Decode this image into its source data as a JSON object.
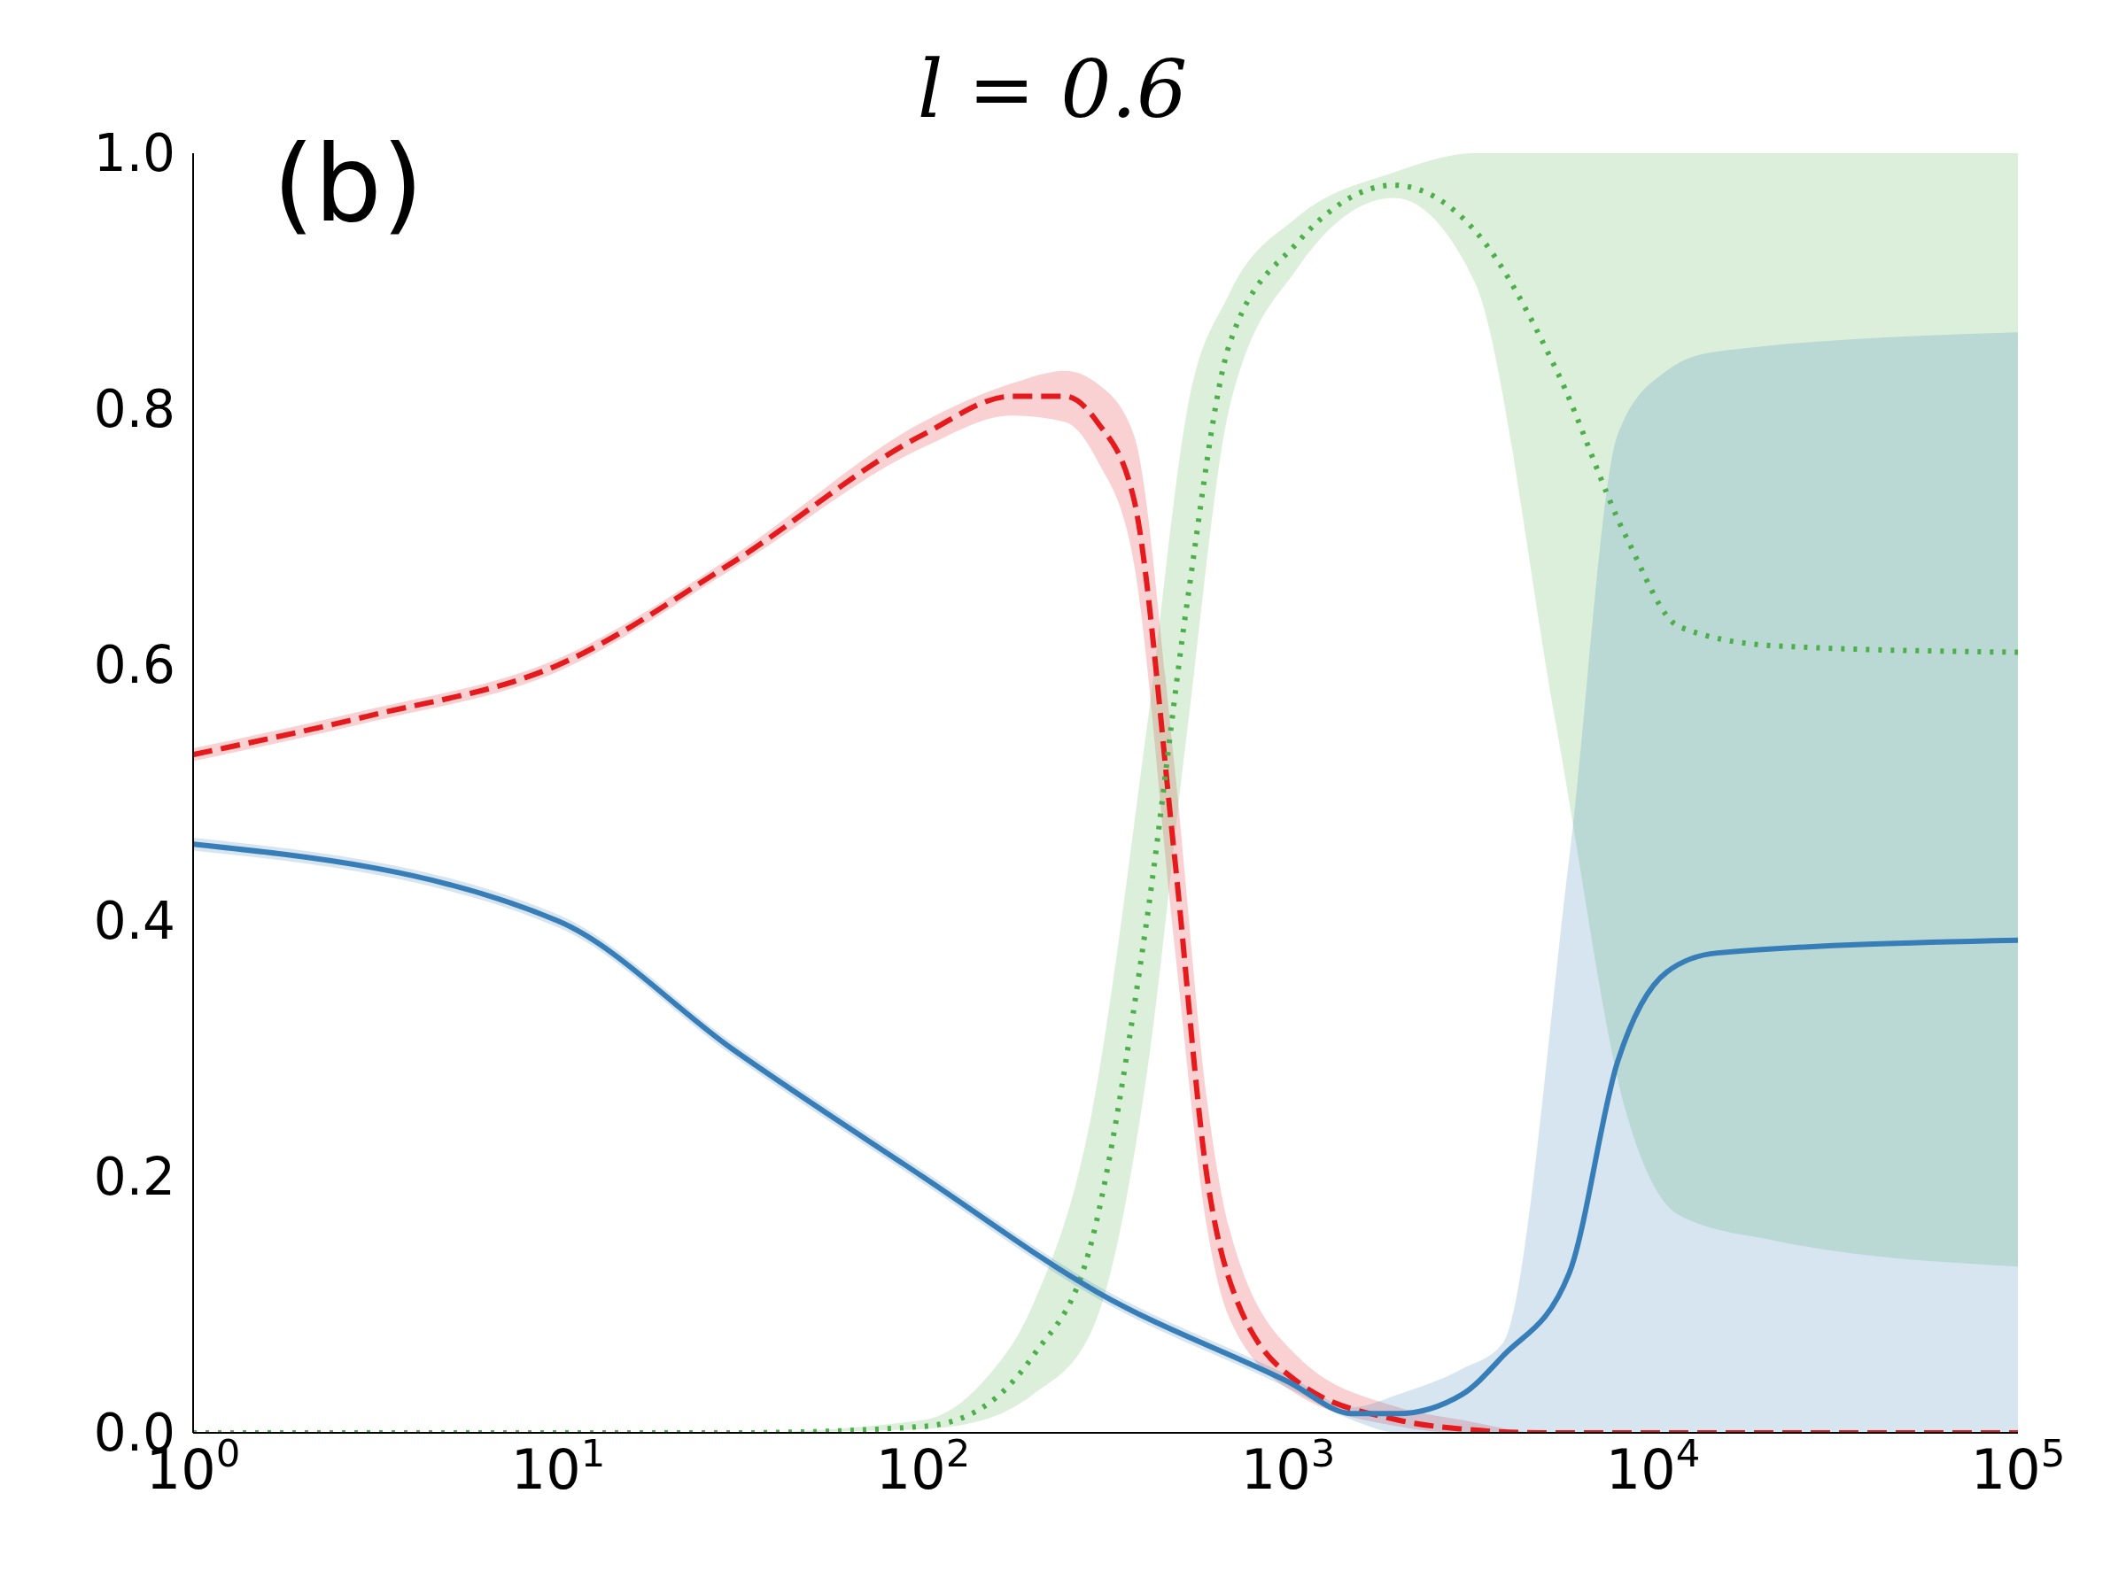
{
  "chart_data": {
    "type": "line",
    "title": "l = 0.6",
    "annotations": [
      "(b)"
    ],
    "log": "x",
    "marker": "none",
    "xlim": [
      1,
      100000
    ],
    "xticks": [
      {
        "value": 1,
        "label": "10$^{0}$"
      },
      {
        "value": 10,
        "label": "10$^{1}$"
      },
      {
        "value": 100,
        "label": "10$^{2}$"
      },
      {
        "value": 1000,
        "label": "10$^{3}$"
      },
      {
        "value": 10000,
        "label": "10$^{4}$"
      },
      {
        "value": 100000,
        "label": "10$^{5}$"
      }
    ],
    "ylim": [
      0,
      1
    ],
    "yticks": [
      {
        "value": 0,
        "label": "0.0"
      },
      {
        "value": 0.2,
        "label": "0.2"
      },
      {
        "value": 0.4,
        "label": "0.4"
      },
      {
        "value": 0.6,
        "label": "0.6"
      },
      {
        "value": 0.8,
        "label": "0.8"
      },
      {
        "value": 1,
        "label": "1.0"
      }
    ],
    "series": [
      {
        "color": "#e41a1c",
        "line_style": "dashed",
        "x": [
          1,
          3,
          10,
          30,
          100,
          175,
          245,
          300,
          378,
          489,
          600,
          690,
          1060,
          2000,
          3000,
          5000,
          100000
        ],
        "values": [
          0.53,
          0.56,
          0.6,
          0.68,
          0.78,
          0.81,
          0.81,
          0.79,
          0.73,
          0.45,
          0.2,
          0.12,
          0.04,
          0.01,
          0.003,
          0,
          0
        ],
        "lower": [
          0.525,
          0.555,
          0.595,
          0.675,
          0.77,
          0.795,
          0.79,
          0.76,
          0.68,
          0.38,
          0.16,
          0.09,
          0.03,
          0.005,
          0,
          0,
          0
        ],
        "upper": [
          0.535,
          0.565,
          0.605,
          0.685,
          0.79,
          0.82,
          0.83,
          0.82,
          0.78,
          0.52,
          0.26,
          0.16,
          0.06,
          0.02,
          0.01,
          0,
          0
        ]
      },
      {
        "color": "#4daf4a",
        "line_style": "dotted",
        "x": [
          1,
          30,
          100,
          146,
          200,
          290,
          410,
          530,
          690,
          1060,
          1950,
          3240,
          5450,
          8450,
          11800,
          21700,
          100000
        ],
        "values": [
          0,
          0,
          0.005,
          0.02,
          0.06,
          0.15,
          0.4,
          0.65,
          0.85,
          0.93,
          0.975,
          0.94,
          0.83,
          0.7,
          0.63,
          0.615,
          0.61
        ],
        "lower": [
          0,
          0,
          0.003,
          0.01,
          0.03,
          0.08,
          0.28,
          0.55,
          0.8,
          0.91,
          0.965,
          0.9,
          0.55,
          0.25,
          0.17,
          0.15,
          0.13
        ],
        "upper": [
          0,
          0,
          0.01,
          0.04,
          0.1,
          0.25,
          0.55,
          0.8,
          0.89,
          0.95,
          0.985,
          1,
          1,
          1,
          1,
          1,
          1
        ]
      },
      {
        "color": "#377eb8",
        "line_style": "solid",
        "x": [
          1,
          10,
          30,
          100,
          300,
          1000,
          1500,
          2000,
          3000,
          3880,
          5900,
          8000,
          10900,
          15000,
          100000
        ],
        "values": [
          0.46,
          0.4,
          0.3,
          0.2,
          0.11,
          0.04,
          0.015,
          0.015,
          0.03,
          0.06,
          0.125,
          0.29,
          0.36,
          0.375,
          0.385
        ],
        "lower": [
          0.455,
          0.395,
          0.295,
          0.195,
          0.105,
          0.035,
          0.01,
          0,
          0,
          0,
          0,
          0,
          0,
          0,
          0
        ],
        "upper": [
          0.465,
          0.405,
          0.305,
          0.205,
          0.115,
          0.045,
          0.02,
          0.03,
          0.05,
          0.07,
          0.45,
          0.78,
          0.83,
          0.845,
          0.86
        ]
      }
    ]
  }
}
